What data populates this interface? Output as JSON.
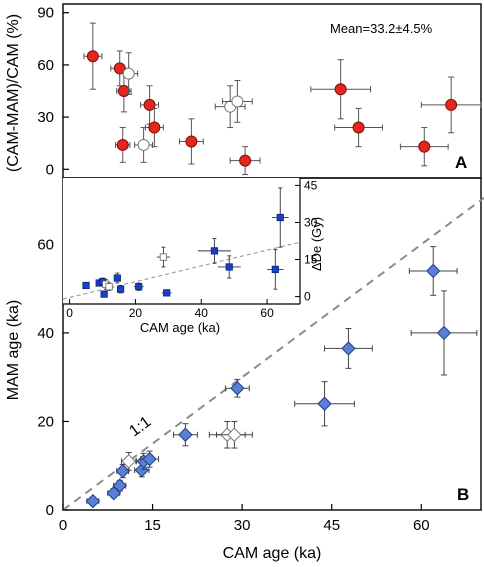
{
  "chart_data": [
    {
      "panel": "A",
      "type": "scatter",
      "ylabel": "(CAM-MAM)/CAM (%)",
      "xlabel": "",
      "xlim": [
        0,
        70
      ],
      "ylim": [
        -5,
        95
      ],
      "yticks": [
        0,
        30,
        60,
        90
      ],
      "annotation": "Mean=33.2±4.5%",
      "points": [
        {
          "x": 5,
          "y": 65,
          "xerr": 1.5,
          "yerr": 19,
          "fill": "#e8251c"
        },
        {
          "x": 9.5,
          "y": 58,
          "xerr": 1.5,
          "yerr": 10,
          "fill": "#e8251c"
        },
        {
          "x": 10.2,
          "y": 45,
          "xerr": 1.2,
          "yerr": 12,
          "fill": "#e8251c"
        },
        {
          "x": 10,
          "y": 14,
          "xerr": 1.2,
          "yerr": 10,
          "fill": "#e8251c"
        },
        {
          "x": 11,
          "y": 55,
          "xerr": 1.5,
          "yerr": 12,
          "fill": "#ffffff"
        },
        {
          "x": 13.5,
          "y": 14,
          "xerr": 1.5,
          "yerr": 10,
          "fill": "#ffffff"
        },
        {
          "x": 14.5,
          "y": 37,
          "xerr": 1.5,
          "yerr": 11,
          "fill": "#e8251c"
        },
        {
          "x": 15.3,
          "y": 24,
          "xerr": 1.5,
          "yerr": 11,
          "fill": "#e8251c"
        },
        {
          "x": 21.5,
          "y": 16,
          "xerr": 2,
          "yerr": 13,
          "fill": "#e8251c"
        },
        {
          "x": 28,
          "y": 36,
          "xerr": 2.5,
          "yerr": 12,
          "fill": "#ffffff"
        },
        {
          "x": 29.2,
          "y": 39,
          "xerr": 2.5,
          "yerr": 12,
          "fill": "#ffffff"
        },
        {
          "x": 30.5,
          "y": 5,
          "xerr": 2.5,
          "yerr": 8,
          "fill": "#e8251c"
        },
        {
          "x": 46.5,
          "y": 46,
          "xerr": 5,
          "yerr": 17,
          "fill": "#e8251c"
        },
        {
          "x": 49.5,
          "y": 24,
          "xerr": 4,
          "yerr": 11,
          "fill": "#e8251c"
        },
        {
          "x": 60.5,
          "y": 13,
          "xerr": 4,
          "yerr": 11,
          "fill": "#e8251c"
        },
        {
          "x": 65,
          "y": 37,
          "xerr": 5,
          "yerr": 16,
          "fill": "#e8251c"
        }
      ],
      "panel_label": "A"
    },
    {
      "panel": "B",
      "type": "scatter",
      "xlabel": "CAM age (ka)",
      "ylabel": "MAM age (ka)",
      "xlim": [
        0,
        70
      ],
      "ylim": [
        0,
        75
      ],
      "xticks": [
        0,
        15,
        30,
        45,
        60
      ],
      "yticks": [
        0,
        20,
        40,
        60
      ],
      "oneToOneLabel": "1:1",
      "panel_label": "B",
      "points": [
        {
          "x": 5,
          "y": 2,
          "xerr": 1,
          "yerr": 0.8,
          "fill": "#5b7fd6"
        },
        {
          "x": 8.5,
          "y": 3.8,
          "xerr": 1,
          "yerr": 1,
          "fill": "#5b7fd6"
        },
        {
          "x": 9.5,
          "y": 5.5,
          "xerr": 1,
          "yerr": 1.2,
          "fill": "#5b7fd6"
        },
        {
          "x": 10,
          "y": 8.8,
          "xerr": 1,
          "yerr": 1.5,
          "fill": "#5b7fd6"
        },
        {
          "x": 11,
          "y": 11,
          "xerr": 1.2,
          "yerr": 2,
          "fill": "#ffffff"
        },
        {
          "x": 13.2,
          "y": 9,
          "xerr": 1.2,
          "yerr": 1.5,
          "fill": "#5b7fd6"
        },
        {
          "x": 13.5,
          "y": 11,
          "xerr": 1.2,
          "yerr": 1.8,
          "fill": "#5b7fd6"
        },
        {
          "x": 14.5,
          "y": 11.5,
          "xerr": 1.5,
          "yerr": 1.8,
          "fill": "#5b7fd6"
        },
        {
          "x": 20.5,
          "y": 17,
          "xerr": 2,
          "yerr": 2.5,
          "fill": "#5b7fd6"
        },
        {
          "x": 27.5,
          "y": 17,
          "xerr": 3,
          "yerr": 3,
          "fill": "#ffffff"
        },
        {
          "x": 28.7,
          "y": 17,
          "xerr": 3,
          "yerr": 3,
          "fill": "#ffffff"
        },
        {
          "x": 29.2,
          "y": 27.5,
          "xerr": 2,
          "yerr": 2,
          "fill": "#5b7fd6"
        },
        {
          "x": 43.8,
          "y": 24,
          "xerr": 5,
          "yerr": 5,
          "fill": "#5b7fd6"
        },
        {
          "x": 47.8,
          "y": 36.5,
          "xerr": 4,
          "yerr": 4.5,
          "fill": "#5b7fd6"
        },
        {
          "x": 62,
          "y": 54,
          "xerr": 4,
          "yerr": 5.5,
          "fill": "#5b7fd6"
        },
        {
          "x": 63.8,
          "y": 40,
          "xerr": 5.5,
          "yerr": 9.5,
          "fill": "#5b7fd6"
        }
      ]
    },
    {
      "panel": "B-inset",
      "type": "scatter",
      "xlabel": "CAM age (ka)",
      "ylabel": "ΔDe (Gy)",
      "xlim": [
        -2,
        70
      ],
      "ylim": [
        -3,
        48
      ],
      "xticks": [
        0,
        20,
        40,
        60
      ],
      "yticks": [
        0,
        25,
        50
      ],
      "yticks_minor": [
        15,
        30,
        45
      ],
      "ytick_labels": [
        "0",
        "15",
        "30",
        "45"
      ],
      "trend": {
        "x": [
          -2,
          70
        ],
        "y": [
          -1,
          22
        ]
      },
      "points": [
        {
          "x": 5,
          "y": 4.5,
          "xerr": 0.8,
          "yerr": 0.8,
          "fill": "#1a3fc4"
        },
        {
          "x": 9,
          "y": 5.5,
          "xerr": 0.8,
          "yerr": 1.2,
          "fill": "#1a3fc4"
        },
        {
          "x": 10,
          "y": 6,
          "xerr": 0.8,
          "yerr": 1.5,
          "fill": "#1a3fc4"
        },
        {
          "x": 10.5,
          "y": 1,
          "xerr": 0.8,
          "yerr": 1,
          "fill": "#1a3fc4"
        },
        {
          "x": 11,
          "y": 5,
          "xerr": 1,
          "yerr": 2,
          "fill": "#ffffff"
        },
        {
          "x": 12,
          "y": 4,
          "xerr": 1,
          "yerr": 1.5,
          "fill": "#ffffff"
        },
        {
          "x": 14.5,
          "y": 7.5,
          "xerr": 1,
          "yerr": 2,
          "fill": "#1a3fc4"
        },
        {
          "x": 15.5,
          "y": 3,
          "xerr": 1,
          "yerr": 1.5,
          "fill": "#1a3fc4"
        },
        {
          "x": 21,
          "y": 4,
          "xerr": 1.5,
          "yerr": 1.5,
          "fill": "#1a3fc4"
        },
        {
          "x": 28.5,
          "y": 16,
          "xerr": 2,
          "yerr": 4,
          "fill": "#ffffff"
        },
        {
          "x": 29.5,
          "y": 1.5,
          "xerr": 1.5,
          "yerr": 1,
          "fill": "#1a3fc4"
        },
        {
          "x": 44,
          "y": 18.5,
          "xerr": 5,
          "yerr": 5,
          "fill": "#1a3fc4"
        },
        {
          "x": 48.5,
          "y": 12,
          "xerr": 3.5,
          "yerr": 4.5,
          "fill": "#1a3fc4"
        },
        {
          "x": 62.5,
          "y": 11,
          "xerr": 2.5,
          "yerr": 8,
          "fill": "#1a3fc4"
        },
        {
          "x": 64,
          "y": 32,
          "xerr": 2.5,
          "yerr": 12,
          "fill": "#1a3fc4"
        }
      ]
    }
  ],
  "colors": {
    "red": "#e8251c",
    "blue_diamond": "#5b7fd6",
    "inset_square": "#1a3fc4",
    "dash": "#8c8c8c"
  }
}
